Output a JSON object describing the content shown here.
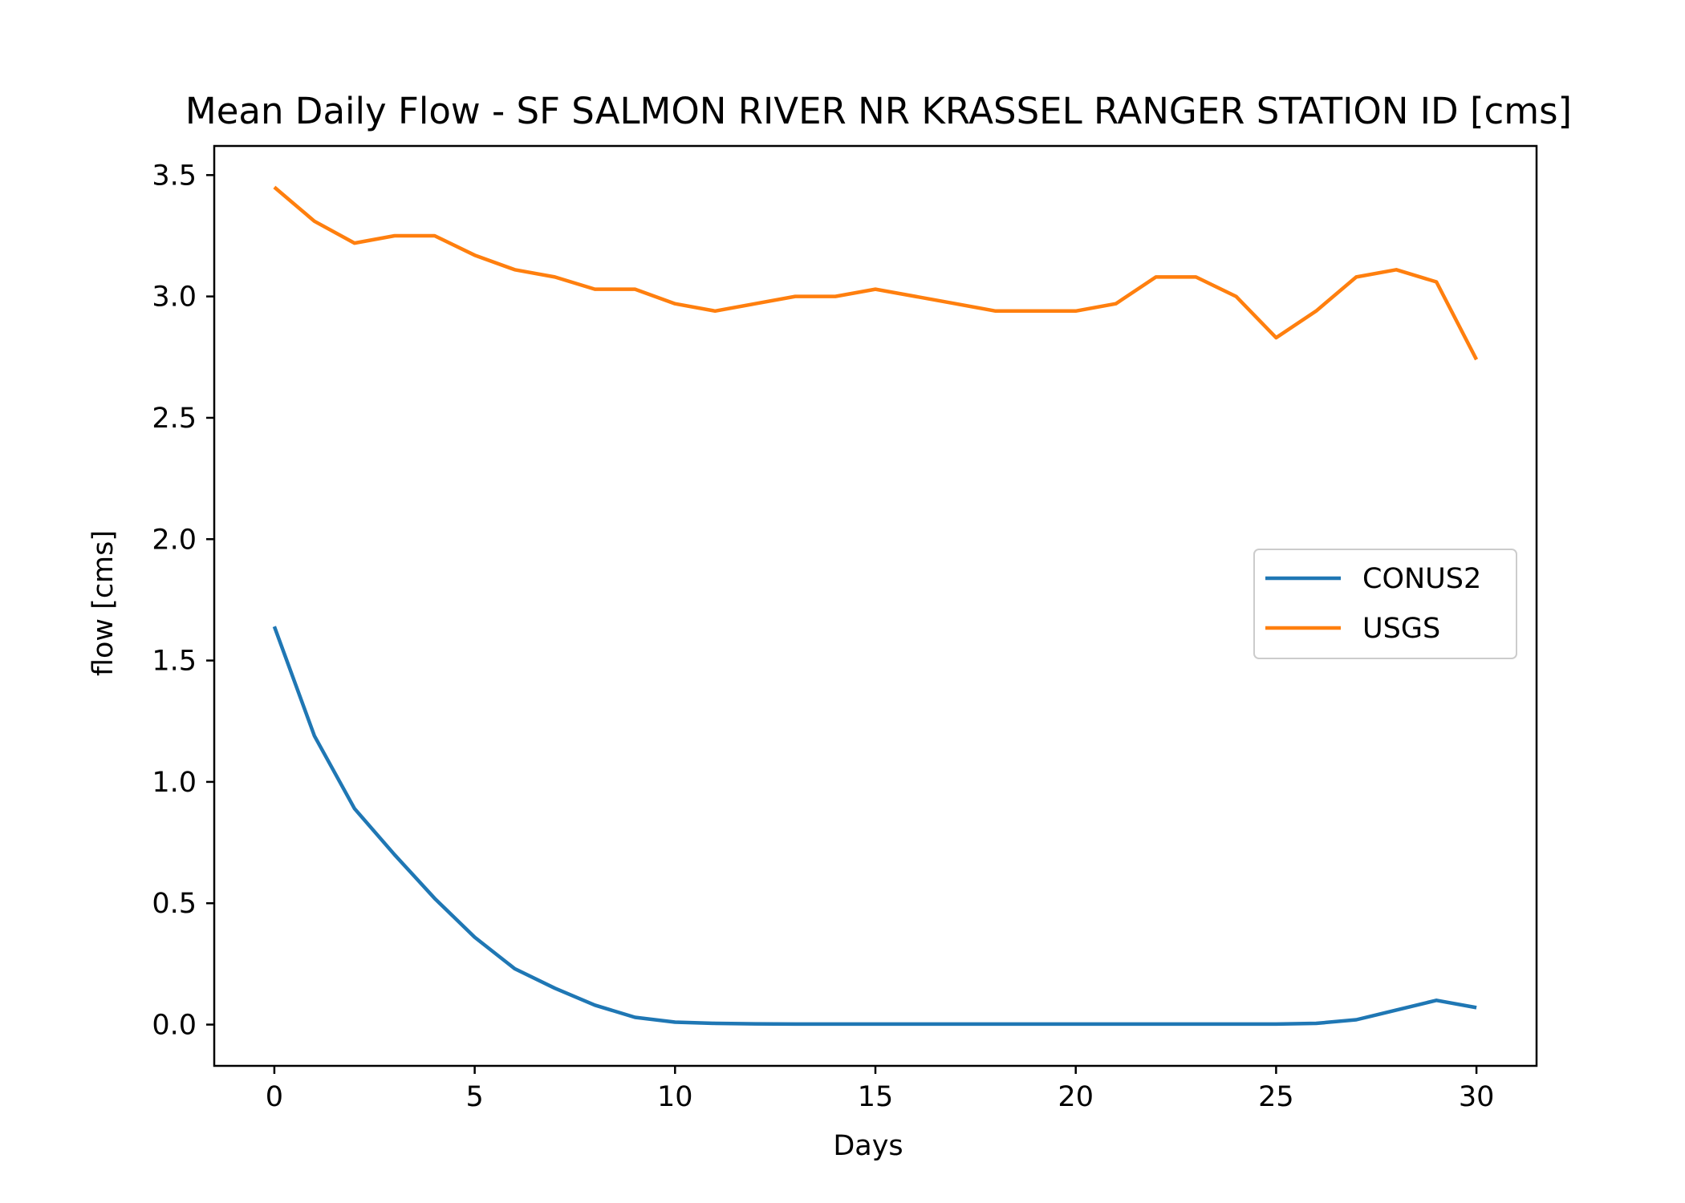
{
  "chart_data": {
    "type": "line",
    "title": "Mean Daily Flow - SF SALMON RIVER NR KRASSEL RANGER STATION ID [cms]",
    "xlabel": "Days",
    "ylabel": "flow [cms]",
    "xlim": [
      -1.5,
      31.5
    ],
    "ylim": [
      -0.17,
      3.62
    ],
    "xticks": [
      0,
      5,
      10,
      15,
      20,
      25,
      30
    ],
    "xtick_labels": [
      "0",
      "5",
      "10",
      "15",
      "20",
      "25",
      "30"
    ],
    "yticks": [
      0.0,
      0.5,
      1.0,
      1.5,
      2.0,
      2.5,
      3.0,
      3.5
    ],
    "ytick_labels": [
      "0.0",
      "0.5",
      "1.0",
      "1.5",
      "2.0",
      "2.5",
      "3.0",
      "3.5"
    ],
    "grid": false,
    "legend_position": "center-right",
    "x": [
      0,
      1,
      2,
      3,
      4,
      5,
      6,
      7,
      8,
      9,
      10,
      11,
      12,
      13,
      14,
      15,
      16,
      17,
      18,
      19,
      20,
      21,
      22,
      23,
      24,
      25,
      26,
      27,
      28,
      29,
      30
    ],
    "series": [
      {
        "name": "CONUS2",
        "color": "#1f77b4",
        "values": [
          1.64,
          1.19,
          0.89,
          0.7,
          0.52,
          0.36,
          0.23,
          0.15,
          0.08,
          0.03,
          0.01,
          0.005,
          0.003,
          0.002,
          0.002,
          0.002,
          0.002,
          0.002,
          0.002,
          0.002,
          0.002,
          0.002,
          0.002,
          0.002,
          0.002,
          0.002,
          0.005,
          0.02,
          0.06,
          0.1,
          0.07
        ]
      },
      {
        "name": "USGS",
        "color": "#ff7f0e",
        "values": [
          3.45,
          3.31,
          3.22,
          3.25,
          3.25,
          3.17,
          3.11,
          3.08,
          3.03,
          3.03,
          2.97,
          2.94,
          2.97,
          3.0,
          3.0,
          3.03,
          3.0,
          2.97,
          2.94,
          2.94,
          2.94,
          2.97,
          3.08,
          3.08,
          3.0,
          2.83,
          2.94,
          3.08,
          3.11,
          3.06,
          2.74
        ]
      }
    ]
  }
}
